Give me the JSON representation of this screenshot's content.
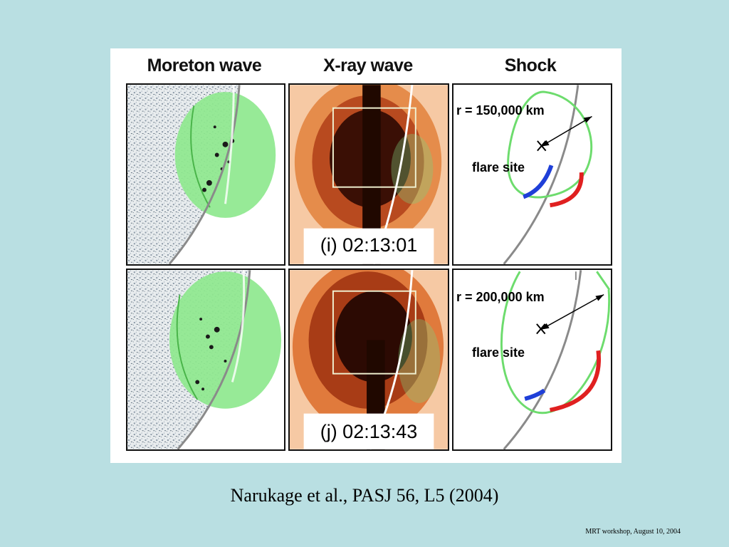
{
  "figure": {
    "columns": [
      "Moreton wave",
      "X-ray wave",
      "Shock"
    ],
    "rows": [
      {
        "xray_label": "(i) 02:13:01",
        "shock_radius": "r = 150,000 km",
        "flare_label": "flare site"
      },
      {
        "xray_label": "(j) 02:13:43",
        "shock_radius": "r = 200,000 km",
        "flare_label": "flare site"
      }
    ]
  },
  "caption": "Narukage et al., PASJ 56, L5 (2004)",
  "footer": "MRT workshop,  August 10,  2004",
  "colors": {
    "background": "#b9dfe2",
    "wave_green": "#7fe57f",
    "xray_orange": "#d8773a",
    "blue_arc": "#1f3fd8",
    "red_arc": "#e02020",
    "limb_gray": "#8a8a8a"
  }
}
